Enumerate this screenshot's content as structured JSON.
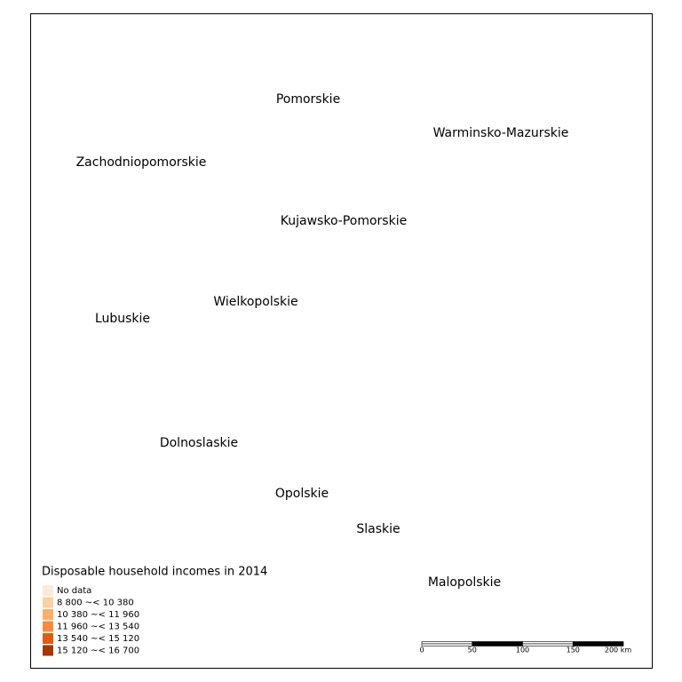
{
  "map": {
    "regions": [
      "Pomorskie",
      "Warminsko-Mazurskie",
      "Zachodniopomorskie",
      "Kujawsko-Pomorskie",
      "Wielkopolskie",
      "Lubuskie",
      "Dolnoslaskie",
      "Opolskie",
      "Slaskie",
      "Malopolskie"
    ],
    "legend": {
      "title": "Disposable household incomes in 2014",
      "items": [
        {
          "label": "No data",
          "color": "#fbe9da"
        },
        {
          "label": "8 800 ~< 10 380",
          "color": "#fdd0a2"
        },
        {
          "label": "10 380 ~< 11 960",
          "color": "#fdae6b"
        },
        {
          "label": "11 960 ~< 13 540",
          "color": "#f98c3a"
        },
        {
          "label": "13 540 ~< 15 120",
          "color": "#e35a12"
        },
        {
          "label": "15 120 ~< 16 700",
          "color": "#a63603"
        }
      ]
    },
    "scale_bar": {
      "labels": [
        "0",
        "50",
        "100",
        "150",
        "200 km"
      ]
    }
  }
}
